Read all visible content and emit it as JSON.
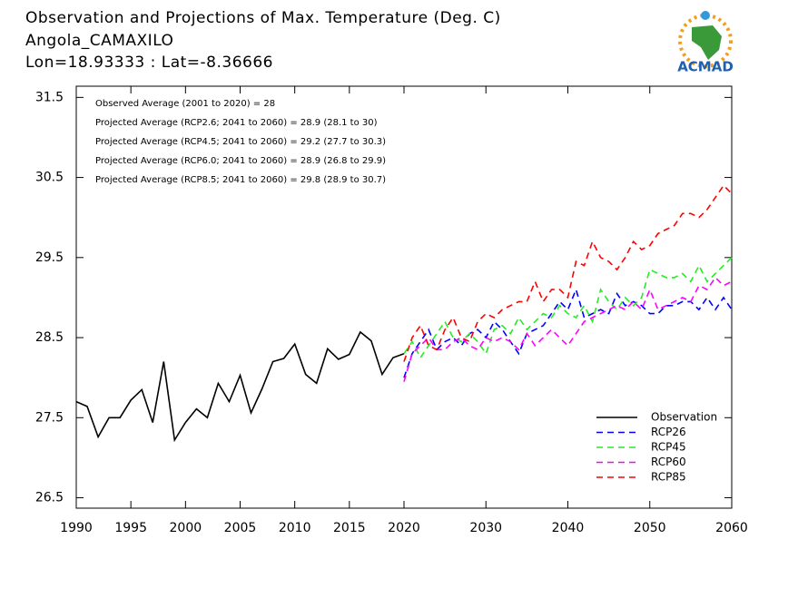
{
  "chart_data": {
    "type": "line",
    "title": "Observation and Projections of Max. Temperature (Deg. C)",
    "subtitle": "Angola_CAMAXILO",
    "location": "Lon=18.93333 : Lat=-8.36666",
    "logo_text": "ACMAD",
    "annotations": [
      "Observed Average (2001 to 2020) = 28",
      "Projected Average (RCP2.6; 2041 to 2060) = 28.9 (28.1 to 30)",
      "Projected Average (RCP4.5; 2041 to 2060) = 29.2 (27.7 to 30.3)",
      "Projected Average (RCP6.0; 2041 to 2060) = 28.9 (26.8 to 29.9)",
      "Projected Average (RCP8.5; 2041 to 2060) = 29.8 (28.9 to 30.7)"
    ],
    "x": [
      1990,
      1991,
      1992,
      1993,
      1994,
      1995,
      1996,
      1997,
      1998,
      1999,
      2000,
      2001,
      2002,
      2003,
      2004,
      2005,
      2006,
      2007,
      2008,
      2009,
      2010,
      2011,
      2012,
      2013,
      2014,
      2015,
      2016,
      2017,
      2018,
      2019,
      2020,
      2021,
      2022,
      2023,
      2024,
      2025,
      2026,
      2027,
      2028,
      2029,
      2030,
      2031,
      2032,
      2033,
      2034,
      2035,
      2036,
      2037,
      2038,
      2039,
      2040,
      2041,
      2042,
      2043,
      2044,
      2045,
      2046,
      2047,
      2048,
      2049,
      2050,
      2051,
      2052,
      2053,
      2054,
      2055,
      2056,
      2057,
      2058,
      2059,
      2060
    ],
    "x_segments": [
      [
        1990,
        2020
      ],
      [
        2020,
        2060
      ]
    ],
    "xlim": [
      1990,
      2060
    ],
    "xticks": [
      1990,
      1995,
      2000,
      2005,
      2010,
      2015,
      2020,
      2030,
      2040,
      2050,
      2060
    ],
    "ylim": [
      26.37,
      31.64
    ],
    "yticks": [
      26.5,
      27.5,
      28.5,
      29.5,
      30.5,
      31.5
    ],
    "legend": "lower right",
    "series": [
      {
        "name": "Observation",
        "color": "#000000",
        "dashed": false,
        "values": [
          27.7,
          27.64,
          27.26,
          27.5,
          27.5,
          27.72,
          27.85,
          27.44,
          28.2,
          27.22,
          27.44,
          27.61,
          27.5,
          27.93,
          27.7,
          28.03,
          27.56,
          27.86,
          28.2,
          28.24,
          28.42,
          28.04,
          27.93,
          28.36,
          28.23,
          28.29,
          28.57,
          28.46,
          28.04,
          28.25,
          28.3,
          null,
          null,
          null,
          null,
          null,
          null,
          null,
          null,
          null,
          null,
          null,
          null,
          null,
          null,
          null,
          null,
          null,
          null,
          null,
          null,
          null,
          null,
          null,
          null,
          null,
          null,
          null,
          null,
          null,
          null,
          null,
          null,
          null,
          null,
          null,
          null,
          null,
          null,
          null,
          null
        ]
      },
      {
        "name": "RCP26",
        "color": "#0000ff",
        "dashed": true,
        "values": [
          null,
          null,
          null,
          null,
          null,
          null,
          null,
          null,
          null,
          null,
          null,
          null,
          null,
          null,
          null,
          null,
          null,
          null,
          null,
          null,
          null,
          null,
          null,
          null,
          null,
          null,
          null,
          null,
          null,
          null,
          28.0,
          28.3,
          28.45,
          28.6,
          28.35,
          28.45,
          28.5,
          28.4,
          28.55,
          28.6,
          28.5,
          28.7,
          28.6,
          28.45,
          28.3,
          28.55,
          28.6,
          28.65,
          28.8,
          28.95,
          28.85,
          29.1,
          28.75,
          28.8,
          28.85,
          28.8,
          29.05,
          28.9,
          28.95,
          28.9,
          28.8,
          28.8,
          28.9,
          28.9,
          28.95,
          28.95,
          28.85,
          29.0,
          28.85,
          29.0,
          28.85
        ]
      },
      {
        "name": "RCP45",
        "color": "#22ee22",
        "dashed": true,
        "values": [
          null,
          null,
          null,
          null,
          null,
          null,
          null,
          null,
          null,
          null,
          null,
          null,
          null,
          null,
          null,
          null,
          null,
          null,
          null,
          null,
          null,
          null,
          null,
          null,
          null,
          null,
          null,
          null,
          null,
          null,
          28.3,
          28.45,
          28.25,
          28.4,
          28.55,
          28.7,
          28.5,
          28.45,
          28.55,
          28.45,
          28.3,
          28.6,
          28.65,
          28.55,
          28.75,
          28.6,
          28.7,
          28.8,
          28.75,
          28.9,
          28.8,
          28.75,
          28.9,
          28.7,
          29.1,
          28.95,
          28.85,
          29.0,
          28.9,
          29.0,
          29.35,
          29.3,
          29.25,
          29.25,
          29.3,
          29.2,
          29.4,
          29.2,
          29.3,
          29.4,
          29.5
        ]
      },
      {
        "name": "RCP60",
        "color": "#ff00ff",
        "dashed": true,
        "values": [
          null,
          null,
          null,
          null,
          null,
          null,
          null,
          null,
          null,
          null,
          null,
          null,
          null,
          null,
          null,
          null,
          null,
          null,
          null,
          null,
          null,
          null,
          null,
          null,
          null,
          null,
          null,
          null,
          null,
          null,
          27.95,
          28.3,
          28.4,
          28.5,
          28.35,
          28.35,
          28.45,
          28.5,
          28.4,
          28.35,
          28.5,
          28.45,
          28.5,
          28.45,
          28.35,
          28.55,
          28.4,
          28.5,
          28.6,
          28.5,
          28.4,
          28.55,
          28.7,
          28.75,
          28.8,
          28.85,
          28.9,
          28.85,
          28.95,
          28.85,
          29.1,
          28.85,
          28.9,
          28.95,
          29.0,
          28.95,
          29.15,
          29.1,
          29.25,
          29.15,
          29.2
        ]
      },
      {
        "name": "RCP85",
        "color": "#ff0000",
        "dashed": true,
        "values": [
          null,
          null,
          null,
          null,
          null,
          null,
          null,
          null,
          null,
          null,
          null,
          null,
          null,
          null,
          null,
          null,
          null,
          null,
          null,
          null,
          null,
          null,
          null,
          null,
          null,
          null,
          null,
          null,
          null,
          null,
          28.2,
          28.5,
          28.65,
          28.4,
          28.35,
          28.6,
          28.75,
          28.5,
          28.45,
          28.7,
          28.8,
          28.75,
          28.85,
          28.9,
          28.95,
          28.95,
          29.2,
          28.95,
          29.1,
          29.1,
          29.0,
          29.45,
          29.4,
          29.7,
          29.5,
          29.45,
          29.35,
          29.5,
          29.7,
          29.6,
          29.65,
          29.8,
          29.85,
          29.9,
          30.05,
          30.05,
          30.0,
          30.1,
          30.25,
          30.4,
          30.3
        ]
      }
    ]
  }
}
